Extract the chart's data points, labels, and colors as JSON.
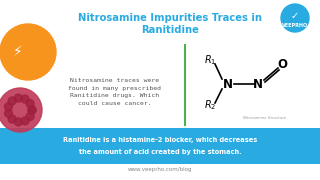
{
  "bg_color": "#ffffff",
  "title_line1": "Nitrosamine Impurities Traces in",
  "title_line2": "Ranitidine",
  "title_color": "#29abe2",
  "body_text": "Nitrosamine traces were\nfound in many prescribed\nRanitidine drugs. Which\ncould cause cancer.",
  "body_text_color": "#555555",
  "banner_text_line1": "Ranitidine is a histamine-2 blocker, which decreases",
  "banner_text_line2": "the amount of acid created by the stomach.",
  "banner_bg": "#29abe2",
  "banner_text_color": "#ffffff",
  "footer_text": "www.veeprho.com/blog",
  "footer_color": "#888888",
  "divider_color": "#4caf50",
  "nitrosamine_label": "Nitrosamine Structure",
  "logo_text": "VEEPRHO",
  "logo_bg": "#29abe2"
}
